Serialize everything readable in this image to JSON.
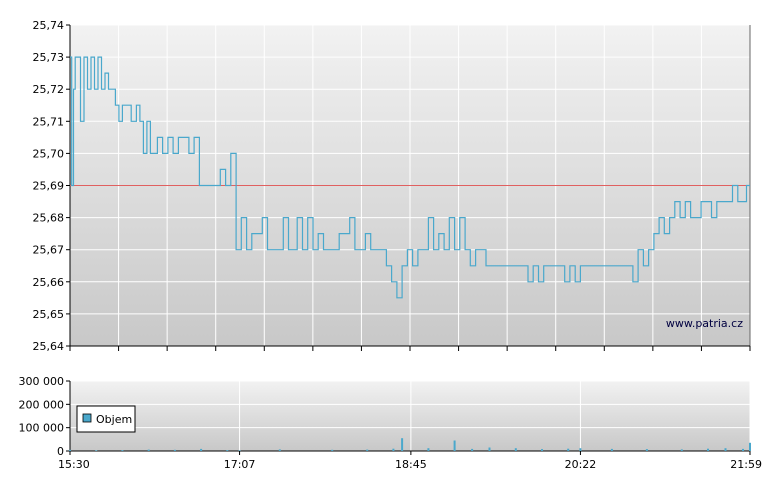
{
  "watermark": "www.patria.cz",
  "legend_label": "Objem",
  "colors": {
    "price_line": "#4aa8cc",
    "reference_line": "#e06060",
    "volume_bar": "#4aa8cc",
    "grid": "#ffffff",
    "plot_bg_top": "#f2f2f2",
    "plot_bg_bottom": "#c8c8c8"
  },
  "chart_data": [
    {
      "type": "line",
      "title": "",
      "y_ticks": [
        "25,64",
        "25,65",
        "25,66",
        "25,67",
        "25,68",
        "25,69",
        "25,70",
        "25,71",
        "25,72",
        "25,73",
        "25,74"
      ],
      "ylim": [
        25.64,
        25.74
      ],
      "x_ticks": [
        "15:30",
        "17:07",
        "18:45",
        "20:22",
        "21:59"
      ],
      "xlim": [
        "15:30",
        "21:59"
      ],
      "grid": true,
      "reference_line": 25.69,
      "series": [
        {
          "x": [
            "15:30",
            "15:31",
            "15:32",
            "15:33",
            "15:36",
            "15:38",
            "15:40",
            "15:42",
            "15:44",
            "15:46",
            "15:48",
            "15:50",
            "15:52",
            "15:54",
            "15:56",
            "15:58",
            "16:00",
            "16:02",
            "16:05",
            "16:08",
            "16:10",
            "16:12",
            "16:14",
            "16:16",
            "16:18",
            "16:20",
            "16:23",
            "16:26",
            "16:29",
            "16:32",
            "16:35",
            "16:38",
            "16:41",
            "16:44",
            "16:47",
            "16:50",
            "16:53",
            "16:56",
            "16:59",
            "17:02",
            "17:05",
            "17:08",
            "17:11",
            "17:14",
            "17:17",
            "17:20",
            "17:23",
            "17:26",
            "17:29",
            "17:32",
            "17:35",
            "17:37",
            "17:40",
            "17:43",
            "17:46",
            "17:49",
            "17:52",
            "17:55",
            "17:58",
            "18:01",
            "18:04",
            "18:07",
            "18:10",
            "18:13",
            "18:16",
            "18:19",
            "18:22",
            "18:25",
            "18:28",
            "18:31",
            "18:34",
            "18:37",
            "18:40",
            "18:43",
            "18:46",
            "18:49",
            "18:52",
            "18:55",
            "18:58",
            "19:01",
            "19:04",
            "19:07",
            "19:10",
            "19:13",
            "19:16",
            "19:19",
            "19:22",
            "19:25",
            "19:28",
            "19:31",
            "19:34",
            "19:37",
            "19:40",
            "19:43",
            "19:46",
            "19:49",
            "19:52",
            "19:55",
            "19:58",
            "20:01",
            "20:04",
            "20:07",
            "20:10",
            "20:13",
            "20:16",
            "20:19",
            "20:22",
            "20:25",
            "20:28",
            "20:31",
            "20:34",
            "20:37",
            "20:40",
            "20:43",
            "20:46",
            "20:49",
            "20:52",
            "20:55",
            "20:58",
            "21:01",
            "21:04",
            "21:07",
            "21:10",
            "21:13",
            "21:16",
            "21:19",
            "21:22",
            "21:25",
            "21:28",
            "21:31",
            "21:34",
            "21:37",
            "21:40",
            "21:43",
            "21:46",
            "21:49",
            "21:52",
            "21:55",
            "21:57",
            "21:59"
          ],
          "y": [
            25.73,
            25.69,
            25.72,
            25.73,
            25.71,
            25.73,
            25.72,
            25.73,
            25.72,
            25.73,
            25.72,
            25.725,
            25.72,
            25.72,
            25.715,
            25.71,
            25.715,
            25.715,
            25.71,
            25.715,
            25.71,
            25.7,
            25.71,
            25.7,
            25.7,
            25.705,
            25.7,
            25.705,
            25.7,
            25.705,
            25.705,
            25.7,
            25.705,
            25.69,
            25.69,
            25.69,
            25.69,
            25.695,
            25.69,
            25.7,
            25.67,
            25.68,
            25.67,
            25.675,
            25.675,
            25.68,
            25.67,
            25.67,
            25.67,
            25.68,
            25.67,
            25.67,
            25.68,
            25.67,
            25.68,
            25.67,
            25.675,
            25.67,
            25.67,
            25.67,
            25.675,
            25.675,
            25.68,
            25.67,
            25.67,
            25.675,
            25.67,
            25.67,
            25.67,
            25.665,
            25.66,
            25.655,
            25.665,
            25.67,
            25.665,
            25.67,
            25.67,
            25.68,
            25.67,
            25.675,
            25.67,
            25.68,
            25.67,
            25.68,
            25.67,
            25.665,
            25.67,
            25.67,
            25.665,
            25.665,
            25.665,
            25.665,
            25.665,
            25.665,
            25.665,
            25.665,
            25.66,
            25.665,
            25.66,
            25.665,
            25.665,
            25.665,
            25.665,
            25.66,
            25.665,
            25.66,
            25.665,
            25.665,
            25.665,
            25.665,
            25.665,
            25.665,
            25.665,
            25.665,
            25.665,
            25.665,
            25.66,
            25.67,
            25.665,
            25.67,
            25.675,
            25.68,
            25.675,
            25.68,
            25.685,
            25.68,
            25.685,
            25.68,
            25.68,
            25.685,
            25.685,
            25.68,
            25.685,
            25.685,
            25.685,
            25.69,
            25.685,
            25.685,
            25.69,
            25.69
          ]
        }
      ]
    },
    {
      "type": "bar",
      "title": "",
      "y_ticks": [
        "0",
        "100 000",
        "200 000",
        "300 000"
      ],
      "ylim": [
        0,
        300000
      ],
      "x_ticks": [
        "15:30",
        "17:07",
        "18:45",
        "20:22",
        "21:59"
      ],
      "grid": true,
      "legend": "top-left",
      "series": [
        {
          "name": "Objem",
          "x": [
            "15:30",
            "15:45",
            "16:00",
            "16:15",
            "16:30",
            "16:45",
            "17:00",
            "17:07",
            "17:30",
            "18:00",
            "18:20",
            "18:35",
            "18:40",
            "18:55",
            "19:10",
            "19:20",
            "19:30",
            "19:45",
            "20:00",
            "20:15",
            "20:22",
            "20:40",
            "21:00",
            "21:20",
            "21:35",
            "21:45",
            "21:55",
            "21:59"
          ],
          "values": [
            5000,
            3000,
            4000,
            6000,
            5000,
            9000,
            4000,
            3000,
            7000,
            5000,
            6000,
            10000,
            55000,
            12000,
            45000,
            9000,
            15000,
            12000,
            8000,
            10000,
            12000,
            9000,
            8000,
            7000,
            10000,
            12000,
            9000,
            35000
          ]
        }
      ]
    }
  ]
}
